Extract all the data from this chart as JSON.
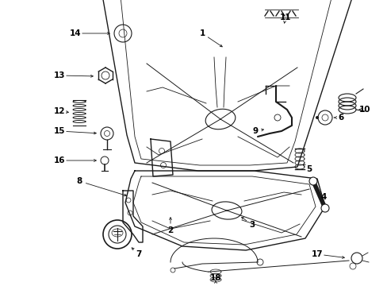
{
  "bg_color": "#ffffff",
  "fig_width": 4.89,
  "fig_height": 3.6,
  "dpi": 100,
  "line_color": "#1a1a1a",
  "label_color": "#000000"
}
